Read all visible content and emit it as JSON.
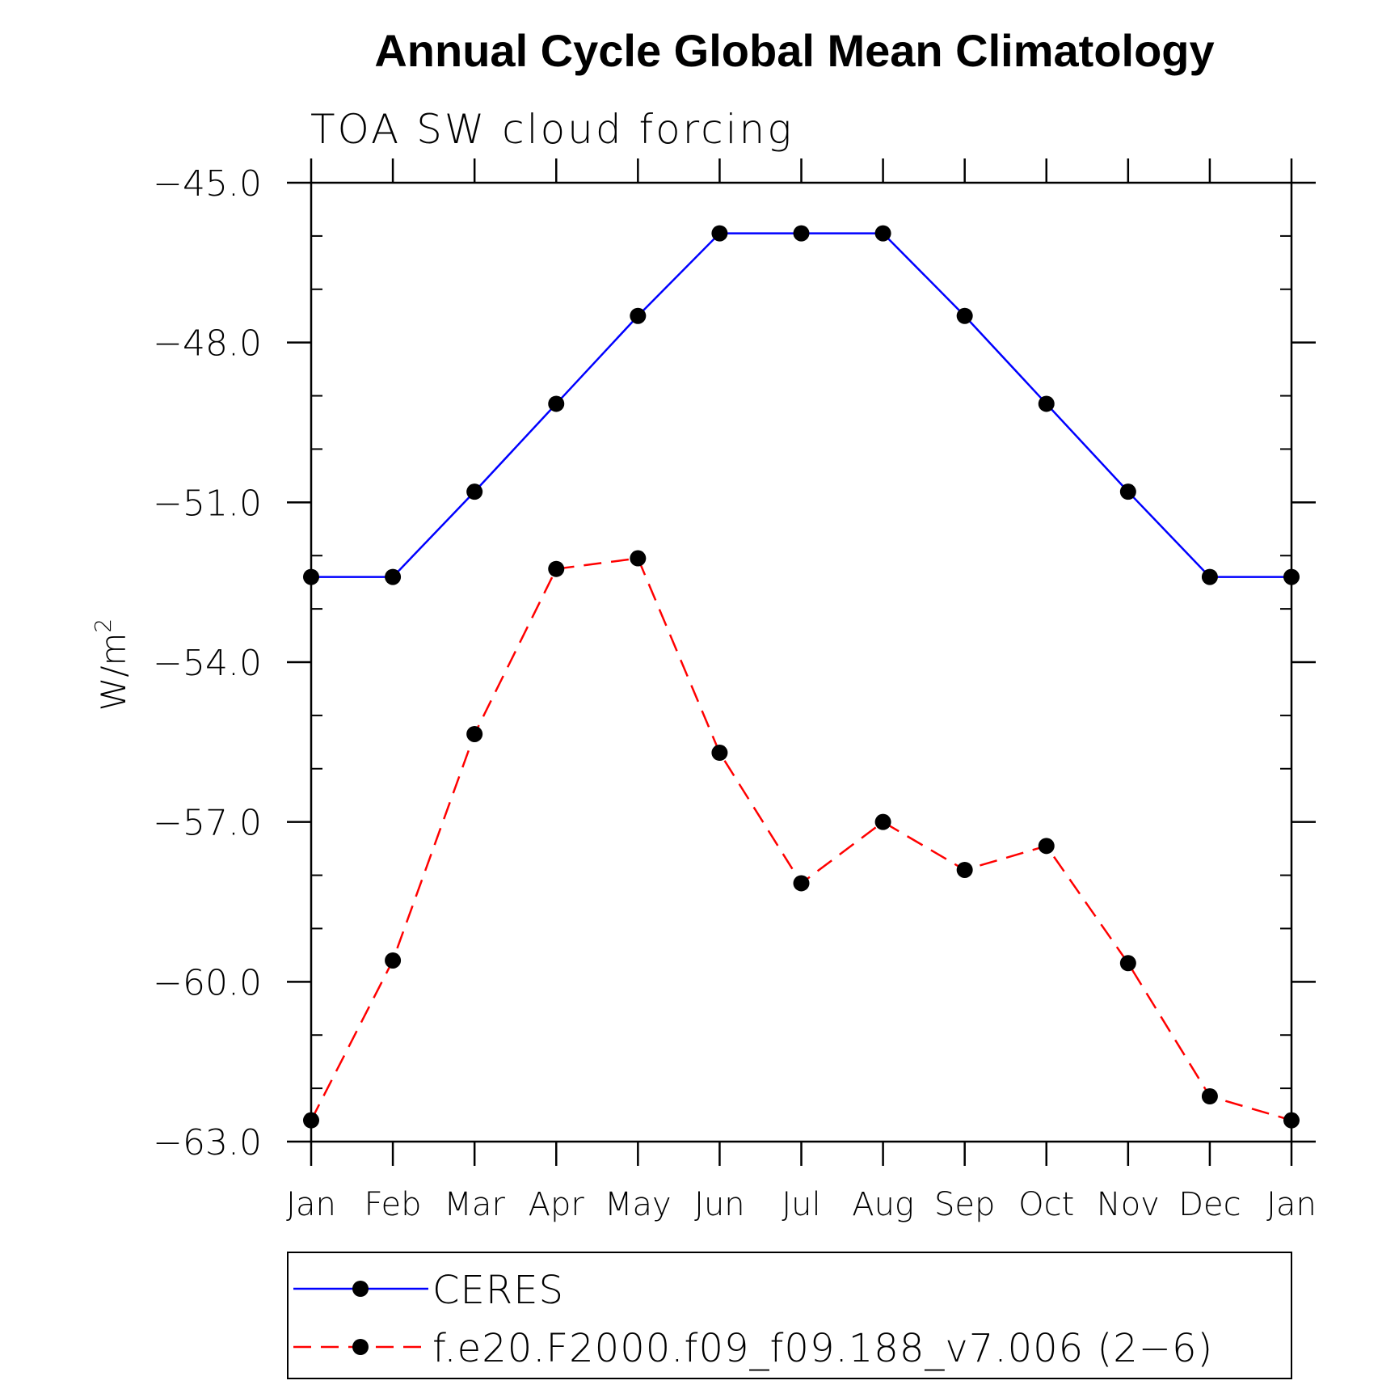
{
  "chart_data": {
    "type": "line",
    "title": "Annual Cycle Global Mean Climatology",
    "subtitle": "TOA SW cloud forcing",
    "xlabel": "",
    "ylabel": "W/m",
    "ylabel_superscript": "2",
    "categories": [
      "Jan",
      "Feb",
      "Mar",
      "Apr",
      "May",
      "Jun",
      "Jul",
      "Aug",
      "Sep",
      "Oct",
      "Nov",
      "Dec",
      "Jan"
    ],
    "ylim": [
      -63.0,
      -45.0
    ],
    "y_ticks": [
      -45.0,
      -48.0,
      -51.0,
      -54.0,
      -57.0,
      -60.0,
      -63.0
    ],
    "y_tick_labels": [
      "−45.0",
      "−48.0",
      "−51.0",
      "−54.0",
      "−57.0",
      "−60.0",
      "−63.0"
    ],
    "y_minor_step": 1.0,
    "grid": false,
    "legend_position": "bottom",
    "series": [
      {
        "name": "CERES",
        "color": "#0000ff",
        "line_style": "solid",
        "marker": "circle",
        "values": [
          -52.4,
          -52.4,
          -50.8,
          -49.15,
          -47.5,
          -45.95,
          -45.95,
          -45.95,
          -47.5,
          -49.15,
          -50.8,
          -52.4,
          -52.4
        ]
      },
      {
        "name": "f.e20.F2000.f09_f09.188_v7.006 (2−6)",
        "color": "#ff0000",
        "line_style": "dashed",
        "marker": "circle",
        "values": [
          -62.6,
          -59.6,
          -55.35,
          -52.25,
          -52.05,
          -55.7,
          -58.15,
          -57.0,
          -57.9,
          -57.45,
          -59.65,
          -62.15,
          -62.6
        ]
      }
    ]
  }
}
